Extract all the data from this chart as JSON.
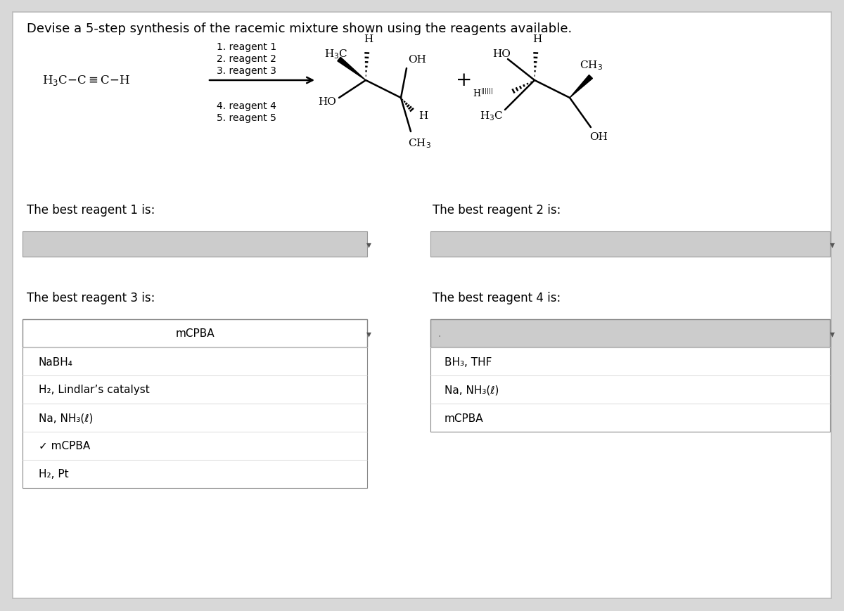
{
  "title": "Devise a 5-step synthesis of the racemic mixture shown using the reagents available.",
  "bg": "#d8d8d8",
  "card_bg": "#ffffff",
  "dropdown_gray": "#cccccc",
  "reagent1_label": "The best reagent 1 is:",
  "reagent2_label": "The best reagent 2 is:",
  "reagent3_label": "The best reagent 3 is:",
  "reagent4_label": "The best reagent 4 is:",
  "dropdown3_selected": "mCPBA",
  "dropdown4_selected": "",
  "dropdown3_options": [
    "NaBH₄",
    "H₂, Lindlar’s catalyst",
    "Na, NH₃(ℓ)",
    "✓ mCPBA",
    "H₂, Pt"
  ],
  "dropdown4_options": [
    "BH₃, THF",
    "Na, NH₃(ℓ)",
    "mCPBA"
  ],
  "font_title": 13,
  "font_label": 12,
  "font_chem": 11,
  "font_item": 11
}
